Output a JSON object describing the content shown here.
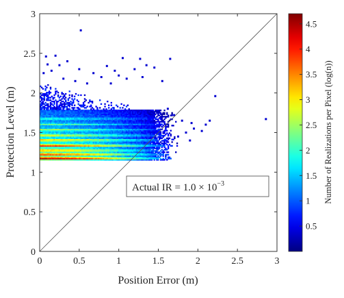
{
  "chart_data": {
    "type": "heatmap",
    "title": "",
    "xlabel": "Position Error (m)",
    "ylabel": "Protection Level (m)",
    "xlim": [
      0,
      3
    ],
    "ylim": [
      0,
      3
    ],
    "x_ticks": [
      "0",
      "0.5",
      "1",
      "1.5",
      "2",
      "2.5",
      "3"
    ],
    "y_ticks": [
      "0",
      "0.5",
      "1",
      "1.5",
      "2",
      "2.5",
      "3"
    ],
    "x_tick_values": [
      0,
      0.5,
      1,
      1.5,
      2,
      2.5,
      3
    ],
    "y_tick_values": [
      0,
      0.5,
      1,
      1.5,
      2,
      2.5,
      3
    ],
    "reference_line": {
      "from": [
        0,
        0
      ],
      "to": [
        3,
        3
      ]
    },
    "colorbar": {
      "label": "Number of Realizations per Pixel (log(n))",
      "range": [
        0,
        4.7
      ],
      "ticks": [
        "0.5",
        "1",
        "1.5",
        "2",
        "2.5",
        "3",
        "3.5",
        "4",
        "4.5"
      ],
      "tick_values": [
        0.5,
        1,
        1.5,
        2,
        2.5,
        3,
        3.5,
        4,
        4.5
      ],
      "colormap": "jet"
    },
    "annotation": {
      "prefix": "Actual IR = 1.0 × 10",
      "exponent": "−3"
    },
    "density": {
      "pl_min": 1.15,
      "pl_core_max": 1.78,
      "pl_cloud_max": 2.1,
      "pe_extent": 1.7,
      "bands": [
        {
          "pl": 1.17,
          "peak": 4.6
        },
        {
          "pl": 1.22,
          "peak": 4.0
        },
        {
          "pl": 1.27,
          "peak": 3.5
        },
        {
          "pl": 1.33,
          "peak": 4.1
        },
        {
          "pl": 1.4,
          "peak": 3.3
        },
        {
          "pl": 1.46,
          "peak": 3.0
        },
        {
          "pl": 1.53,
          "peak": 2.6
        },
        {
          "pl": 1.6,
          "peak": 2.3
        },
        {
          "pl": 1.67,
          "peak": 2.0
        }
      ]
    },
    "outliers": [
      [
        0.52,
        2.79
      ],
      [
        0.08,
        2.46
      ],
      [
        0.2,
        2.47
      ],
      [
        1.05,
        2.44
      ],
      [
        1.27,
        2.43
      ],
      [
        1.65,
        2.43
      ],
      [
        0.35,
        2.4
      ],
      [
        0.1,
        2.36
      ],
      [
        0.25,
        2.35
      ],
      [
        0.5,
        2.3
      ],
      [
        0.85,
        2.34
      ],
      [
        1.35,
        2.35
      ],
      [
        1.45,
        2.32
      ],
      [
        0.15,
        2.28
      ],
      [
        0.68,
        2.25
      ],
      [
        0.95,
        2.28
      ],
      [
        1.2,
        2.3
      ],
      [
        0.78,
        2.2
      ],
      [
        1.1,
        2.18
      ],
      [
        1.3,
        2.2
      ],
      [
        0.45,
        2.15
      ],
      [
        0.6,
        2.12
      ],
      [
        0.3,
        2.18
      ],
      [
        0.9,
        2.12
      ],
      [
        1.55,
        2.15
      ],
      [
        2.22,
        1.96
      ],
      [
        2.86,
        1.67
      ],
      [
        2.1,
        1.6
      ],
      [
        2.05,
        1.52
      ],
      [
        1.95,
        1.55
      ],
      [
        2.15,
        1.65
      ],
      [
        1.8,
        1.65
      ],
      [
        1.85,
        1.5
      ],
      [
        1.75,
        1.45
      ],
      [
        1.9,
        1.4
      ],
      [
        1.7,
        1.72
      ],
      [
        1.62,
        1.8
      ],
      [
        1.92,
        1.62
      ],
      [
        0.05,
        2.25
      ],
      [
        1.0,
        2.22
      ]
    ]
  }
}
